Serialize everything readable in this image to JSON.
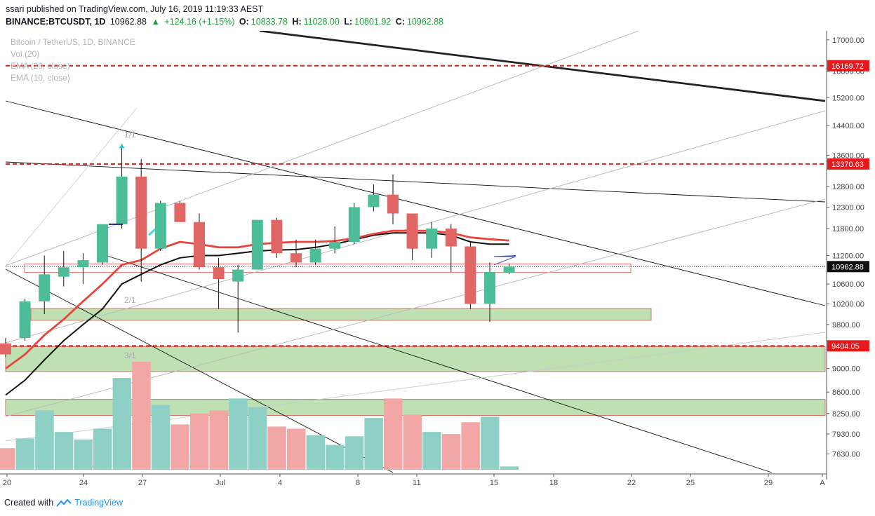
{
  "header": {
    "publisher_line": "ssari published on TradingView.com, July 16, 2019 11:19:33 AEST",
    "symbol": "BINANCE:BTCUSDT, 1D",
    "last": "10962.88",
    "change": "+124.16 (+1.15%)",
    "o_label": "O:",
    "o_value": "10833.78",
    "h_label": "H:",
    "h_value": "11028.00",
    "l_label": "L:",
    "l_value": "10801.92",
    "c_label": "C:",
    "c_value": "10962.88"
  },
  "legend": [
    "Bitcoin / TetherUS, 1D, BINANCE",
    "Vol (20)",
    "EMA (20, close)",
    "EMA (10, close)"
  ],
  "footer": {
    "created_with": "Created with",
    "brand": "TradingView"
  },
  "colors": {
    "up": "#4dbd99",
    "down": "#e06666",
    "vol_up": "#8fd0c6",
    "vol_down": "#f3a6a6",
    "level": "#e41a1c",
    "zone": "#a8d59a",
    "ema10": "#111111",
    "ema20": "#e8453c"
  },
  "chart_data": {
    "type": "candlestick",
    "title": "Bitcoin / TetherUS, 1D, BINANCE",
    "ylim": [
      7400,
      17300
    ],
    "y_scale": "log",
    "y_ticks": [
      7630,
      7930,
      8250,
      8600,
      9000,
      9800,
      10200,
      10600,
      11200,
      11800,
      12300,
      12800,
      13600,
      14400,
      15200,
      16000,
      17000
    ],
    "y_tick_labels": [
      "7630.00",
      "7930.00",
      "8250.00",
      "8600.00",
      "9000.00",
      "9800.00",
      "10200.00",
      "10600.00",
      "11200.00",
      "11800.00",
      "12300.00",
      "12800.00",
      "13600.00",
      "14400.00",
      "15200.00",
      "16000.00",
      "17000.00"
    ],
    "x_tick_labels": [
      "20",
      "24",
      "27",
      "Jul",
      "4",
      "8",
      "11",
      "15",
      "18",
      "22",
      "25",
      "29",
      "A"
    ],
    "price_labels": [
      "16169.72",
      "13370.63",
      "10962.88",
      "9404.05"
    ],
    "horizontal_levels": [
      16169.72,
      13370.63,
      9404.05
    ],
    "current_price": 10962.88,
    "candles": [
      {
        "o": 9450,
        "h": 9550,
        "l": 9200,
        "c": 9250
      },
      {
        "o": 9550,
        "h": 10300,
        "l": 9500,
        "c": 10250
      },
      {
        "o": 10250,
        "h": 11200,
        "l": 10000,
        "c": 10800
      },
      {
        "o": 10750,
        "h": 11300,
        "l": 10550,
        "c": 10950
      },
      {
        "o": 10950,
        "h": 11250,
        "l": 10600,
        "c": 11100
      },
      {
        "o": 11050,
        "h": 11900,
        "l": 11000,
        "c": 11900
      },
      {
        "o": 11900,
        "h": 13900,
        "l": 11800,
        "c": 13050
      },
      {
        "o": 13050,
        "h": 13500,
        "l": 10650,
        "c": 11350
      },
      {
        "o": 11350,
        "h": 12450,
        "l": 11300,
        "c": 12400
      },
      {
        "o": 12400,
        "h": 12450,
        "l": 11950,
        "c": 11950
      },
      {
        "o": 11950,
        "h": 12150,
        "l": 10900,
        "c": 10950
      },
      {
        "o": 10950,
        "h": 11150,
        "l": 10100,
        "c": 10700
      },
      {
        "o": 10650,
        "h": 11000,
        "l": 9650,
        "c": 10900
      },
      {
        "o": 10900,
        "h": 12000,
        "l": 10900,
        "c": 12000
      },
      {
        "o": 12000,
        "h": 12050,
        "l": 11150,
        "c": 11250
      },
      {
        "o": 11250,
        "h": 11550,
        "l": 10950,
        "c": 11050
      },
      {
        "o": 11050,
        "h": 11550,
        "l": 11000,
        "c": 11350
      },
      {
        "o": 11350,
        "h": 11850,
        "l": 11250,
        "c": 11500
      },
      {
        "o": 11500,
        "h": 12400,
        "l": 11450,
        "c": 12300
      },
      {
        "o": 12300,
        "h": 12850,
        "l": 12200,
        "c": 12600
      },
      {
        "o": 12600,
        "h": 13100,
        "l": 11900,
        "c": 12150
      },
      {
        "o": 12150,
        "h": 12150,
        "l": 11100,
        "c": 11350
      },
      {
        "o": 11350,
        "h": 11950,
        "l": 11150,
        "c": 11800
      },
      {
        "o": 11800,
        "h": 11900,
        "l": 10850,
        "c": 11400
      },
      {
        "o": 11400,
        "h": 11500,
        "l": 10100,
        "c": 10200
      },
      {
        "o": 10200,
        "h": 11050,
        "l": 9850,
        "c": 10850
      },
      {
        "o": 10833.78,
        "h": 11028,
        "l": 10801.92,
        "c": 10962.88
      }
    ],
    "series": [
      {
        "name": "Vol (20)",
        "values": [
          0.2,
          0.29,
          0.55,
          0.35,
          0.28,
          0.38,
          0.85,
          1.0,
          0.6,
          0.42,
          0.52,
          0.55,
          0.66,
          0.58,
          0.4,
          0.38,
          0.32,
          0.23,
          0.31,
          0.48,
          0.66,
          0.51,
          0.35,
          0.33,
          0.44,
          0.49,
          0.03
        ]
      },
      {
        "name": "EMA (10, close)",
        "values": [
          8550,
          8800,
          9150,
          9500,
          9800,
          10100,
          10600,
          10800,
          11000,
          11150,
          11200,
          11200,
          11250,
          11300,
          11320,
          11330,
          11380,
          11450,
          11550,
          11650,
          11700,
          11700,
          11700,
          11650,
          11500,
          11450,
          11450
        ]
      },
      {
        "name": "EMA (20, close)",
        "values": [
          9000,
          9250,
          9600,
          9900,
          10250,
          10600,
          11000,
          11100,
          11350,
          11500,
          11450,
          11380,
          11380,
          11450,
          11480,
          11500,
          11500,
          11520,
          11580,
          11680,
          11750,
          11750,
          11750,
          11700,
          11600,
          11560,
          11530
        ]
      }
    ]
  }
}
